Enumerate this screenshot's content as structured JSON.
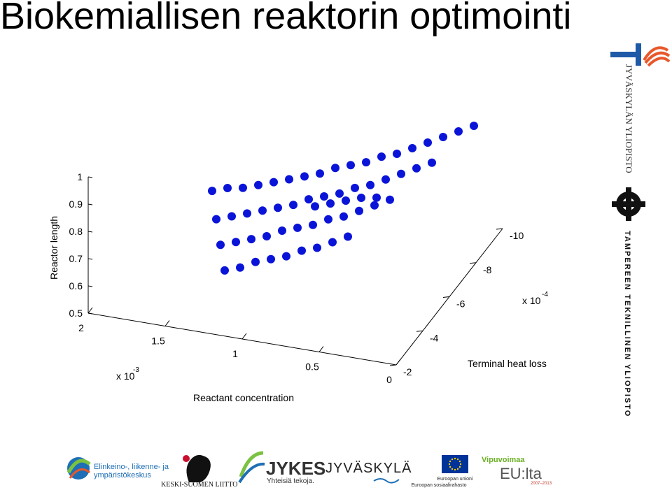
{
  "page": {
    "title": "Biokemiallisen reaktorin optimointi"
  },
  "chart_data": {
    "type": "scatter",
    "title": "",
    "xlabel": "Reactant concentration",
    "ylabel": "Terminal heat loss",
    "zlabel": "Reactor length",
    "x_ticks": [
      "2",
      "1.5",
      "1",
      "0.5",
      "0"
    ],
    "x_multiplier": "x 10",
    "x_exponent": "-3",
    "y_ticks": [
      "-2",
      "-4",
      "-6",
      "-8",
      "-10"
    ],
    "y_multiplier": "x 10",
    "y_exponent": "-4",
    "z_ticks": [
      "1",
      "0.9",
      "0.8",
      "0.7",
      "0.6",
      "0.5"
    ],
    "xlim": [
      0,
      0.002
    ],
    "ylim": [
      -0.001,
      -0.0002
    ],
    "zlim": [
      0.5,
      1
    ],
    "color": "#0a14d8",
    "grid": false,
    "points": [
      {
        "x": 0.0001,
        "y": -0.0009,
        "z": 0.93
      },
      {
        "x": 0.0002,
        "y": -0.0009,
        "z": 0.9
      },
      {
        "x": 0.0003,
        "y": -0.0009,
        "z": 0.87
      },
      {
        "x": 0.0004,
        "y": -0.0009,
        "z": 0.84
      },
      {
        "x": 0.0005,
        "y": -0.0009,
        "z": 0.81
      },
      {
        "x": 0.0006,
        "y": -0.0009,
        "z": 0.78
      },
      {
        "x": 0.0007,
        "y": -0.0009,
        "z": 0.76
      },
      {
        "x": 0.0008,
        "y": -0.0009,
        "z": 0.73
      },
      {
        "x": 0.0009,
        "y": -0.0009,
        "z": 0.71
      },
      {
        "x": 0.001,
        "y": -0.0009,
        "z": 0.69
      },
      {
        "x": 0.0011,
        "y": -0.0009,
        "z": 0.66
      },
      {
        "x": 0.0012,
        "y": -0.0009,
        "z": 0.64
      },
      {
        "x": 0.0013,
        "y": -0.0009,
        "z": 0.62
      },
      {
        "x": 0.0014,
        "y": -0.0009,
        "z": 0.6
      },
      {
        "x": 0.0015,
        "y": -0.0009,
        "z": 0.58
      },
      {
        "x": 0.0016,
        "y": -0.0009,
        "z": 0.56
      },
      {
        "x": 0.0017,
        "y": -0.0009,
        "z": 0.55
      },
      {
        "x": 0.0018,
        "y": -0.0009,
        "z": 0.53
      },
      {
        "x": 0.0002,
        "y": -0.0007,
        "z": 0.91
      },
      {
        "x": 0.0003,
        "y": -0.0007,
        "z": 0.88
      },
      {
        "x": 0.0004,
        "y": -0.0007,
        "z": 0.85
      },
      {
        "x": 0.0005,
        "y": -0.0007,
        "z": 0.82
      },
      {
        "x": 0.0006,
        "y": -0.0007,
        "z": 0.79
      },
      {
        "x": 0.0007,
        "y": -0.0007,
        "z": 0.77
      },
      {
        "x": 0.0008,
        "y": -0.0007,
        "z": 0.74
      },
      {
        "x": 0.0009,
        "y": -0.0007,
        "z": 0.72
      },
      {
        "x": 0.001,
        "y": -0.0007,
        "z": 0.7
      },
      {
        "x": 0.0011,
        "y": -0.0007,
        "z": 0.67
      },
      {
        "x": 0.0012,
        "y": -0.0007,
        "z": 0.65
      },
      {
        "x": 0.0013,
        "y": -0.0007,
        "z": 0.63
      },
      {
        "x": 0.0014,
        "y": -0.0007,
        "z": 0.61
      },
      {
        "x": 0.0015,
        "y": -0.0007,
        "z": 0.59
      },
      {
        "x": 0.0016,
        "y": -0.0007,
        "z": 0.57
      },
      {
        "x": 0.0003,
        "y": -0.0005,
        "z": 0.89
      },
      {
        "x": 0.0004,
        "y": -0.0005,
        "z": 0.86
      },
      {
        "x": 0.0005,
        "y": -0.0005,
        "z": 0.83
      },
      {
        "x": 0.0006,
        "y": -0.0005,
        "z": 0.8
      },
      {
        "x": 0.0007,
        "y": -0.0005,
        "z": 0.78
      },
      {
        "x": 0.0008,
        "y": -0.0005,
        "z": 0.75
      },
      {
        "x": 0.0009,
        "y": -0.0005,
        "z": 0.73
      },
      {
        "x": 0.001,
        "y": -0.0005,
        "z": 0.71
      },
      {
        "x": 0.0011,
        "y": -0.0005,
        "z": 0.68
      },
      {
        "x": 0.0012,
        "y": -0.0005,
        "z": 0.66
      },
      {
        "x": 0.0013,
        "y": -0.0005,
        "z": 0.64
      },
      {
        "x": 0.0014,
        "y": -0.0005,
        "z": 0.62
      },
      {
        "x": 0.0004,
        "y": -0.0003,
        "z": 0.87
      },
      {
        "x": 0.0005,
        "y": -0.0003,
        "z": 0.84
      },
      {
        "x": 0.0006,
        "y": -0.0003,
        "z": 0.81
      },
      {
        "x": 0.0007,
        "y": -0.0003,
        "z": 0.79
      },
      {
        "x": 0.0008,
        "y": -0.0003,
        "z": 0.76
      },
      {
        "x": 0.0009,
        "y": -0.0003,
        "z": 0.74
      },
      {
        "x": 0.001,
        "y": -0.0003,
        "z": 0.72
      },
      {
        "x": 0.0011,
        "y": -0.0003,
        "z": 0.69
      },
      {
        "x": 0.0012,
        "y": -0.0003,
        "z": 0.67
      },
      {
        "x": 0.0003,
        "y": -0.0004,
        "z": 0.96
      },
      {
        "x": 0.0004,
        "y": -0.0004,
        "z": 0.95
      },
      {
        "x": 0.0005,
        "y": -0.0004,
        "z": 0.93
      },
      {
        "x": 0.0006,
        "y": -0.0004,
        "z": 0.91
      },
      {
        "x": 0.0007,
        "y": -0.0004,
        "z": 0.89
      }
    ]
  },
  "logos": {
    "jyu_text": "JYVÄSKYLÄN YLIOPISTO",
    "tut_text": "TAMPEREEN TEKNILLINEN YLIOPISTO",
    "ely_line1": "Elinkeino-, liikenne- ja",
    "ely_line2": "ympäristökeskus",
    "keski_suomen": "KESKI-SUOMEN LIITTO",
    "jykes_name": "JYKES",
    "jykes_tagline": "Yhteisiä tekoja.",
    "jyvaskyla": "JYVÄSKYLÄ",
    "eu_line1": "Euroopan unioni",
    "eu_line2": "Euroopan sosiaalirahasto",
    "vipuvoimaa": "Vipuvoimaa",
    "eu_lta": "EU:lta",
    "eu_years": "2007–2013"
  }
}
